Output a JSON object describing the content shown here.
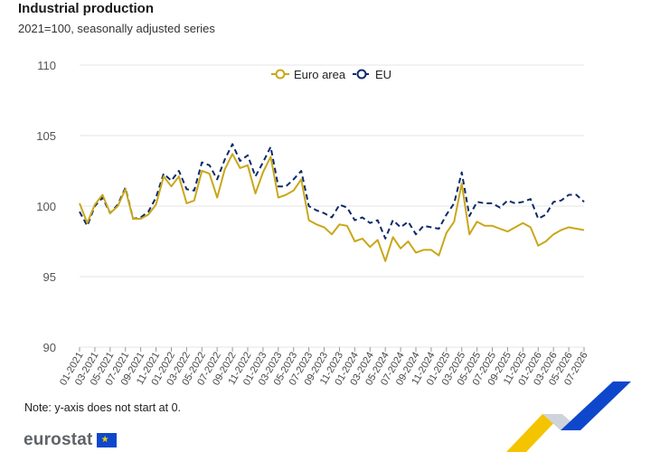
{
  "header": {
    "title": "Industrial production",
    "subtitle": "2021=100, seasonally adjusted series"
  },
  "note": "Note: y-axis does not start at 0.",
  "brand": {
    "name": "eurostat"
  },
  "colors": {
    "euro_area": "#c9a71a",
    "eu": "#0d2a6b",
    "grid": "#e6e6e6"
  },
  "chart_data": {
    "type": "line",
    "title": "Industrial production",
    "subtitle": "2021=100, seasonally adjusted series",
    "xlabel": "",
    "ylabel": "",
    "ylim": [
      90,
      110
    ],
    "yticks": [
      90,
      95,
      100,
      105,
      110
    ],
    "x_tick_labels": [
      "01-2021",
      "03-2021",
      "05-2021",
      "07-2021",
      "09-2021",
      "11-2021",
      "01-2022",
      "03-2022",
      "05-2022",
      "07-2022",
      "09-2022",
      "11-2022",
      "01-2023",
      "03-2023",
      "05-2023",
      "07-2023",
      "09-2023",
      "11-2023",
      "01-2024",
      "03-2024",
      "05-2024",
      "07-2024",
      "09-2024",
      "11-2024",
      "01-2025",
      "03-2025",
      "05-2025",
      "07-2025",
      "09-2025",
      "11-2025",
      "01-2026",
      "03-2026",
      "05-2026",
      "07-2026"
    ],
    "grid": true,
    "legend_position": "top-center",
    "series": [
      {
        "name": "Euro area",
        "style": "solid",
        "color": "#c9a71a",
        "values": [
          100.2,
          98.8,
          100.1,
          100.8,
          99.5,
          100.0,
          101.2,
          99.1,
          99.1,
          99.4,
          100.1,
          102.1,
          101.4,
          102.1,
          100.2,
          100.4,
          102.5,
          102.3,
          100.6,
          102.6,
          103.7,
          102.7,
          102.9,
          100.9,
          102.4,
          103.5,
          100.6,
          100.8,
          101.1,
          101.9,
          99.0,
          98.7,
          98.5,
          98.0,
          98.7,
          98.6,
          97.5,
          97.7,
          97.1,
          97.6,
          96.1,
          97.8,
          97.0,
          97.5,
          96.7,
          96.9,
          96.9,
          96.5,
          98.1,
          98.9,
          101.6,
          98.0,
          98.9,
          98.6,
          98.6,
          98.4,
          98.2,
          98.5,
          98.8,
          98.5,
          97.2,
          97.5,
          98.0,
          98.3,
          98.5,
          98.4,
          98.3
        ]
      },
      {
        "name": "EU",
        "style": "dashed",
        "color": "#0d2a6b",
        "values": [
          99.6,
          98.6,
          100.0,
          100.6,
          99.5,
          100.1,
          101.3,
          99.1,
          99.2,
          99.6,
          100.6,
          102.3,
          101.8,
          102.5,
          101.2,
          101.1,
          103.1,
          102.9,
          101.9,
          103.3,
          104.4,
          103.2,
          103.6,
          102.1,
          103.1,
          104.2,
          101.4,
          101.4,
          101.9,
          102.5,
          100.0,
          99.7,
          99.5,
          99.2,
          100.1,
          99.9,
          99.0,
          99.2,
          98.8,
          99.0,
          97.7,
          99.0,
          98.5,
          98.9,
          98.0,
          98.6,
          98.5,
          98.4,
          99.4,
          100.2,
          102.4,
          99.3,
          100.3,
          100.2,
          100.2,
          99.9,
          100.4,
          100.2,
          100.3,
          100.5,
          99.1,
          99.4,
          100.3,
          100.4,
          100.8,
          100.8,
          100.3
        ]
      }
    ]
  }
}
